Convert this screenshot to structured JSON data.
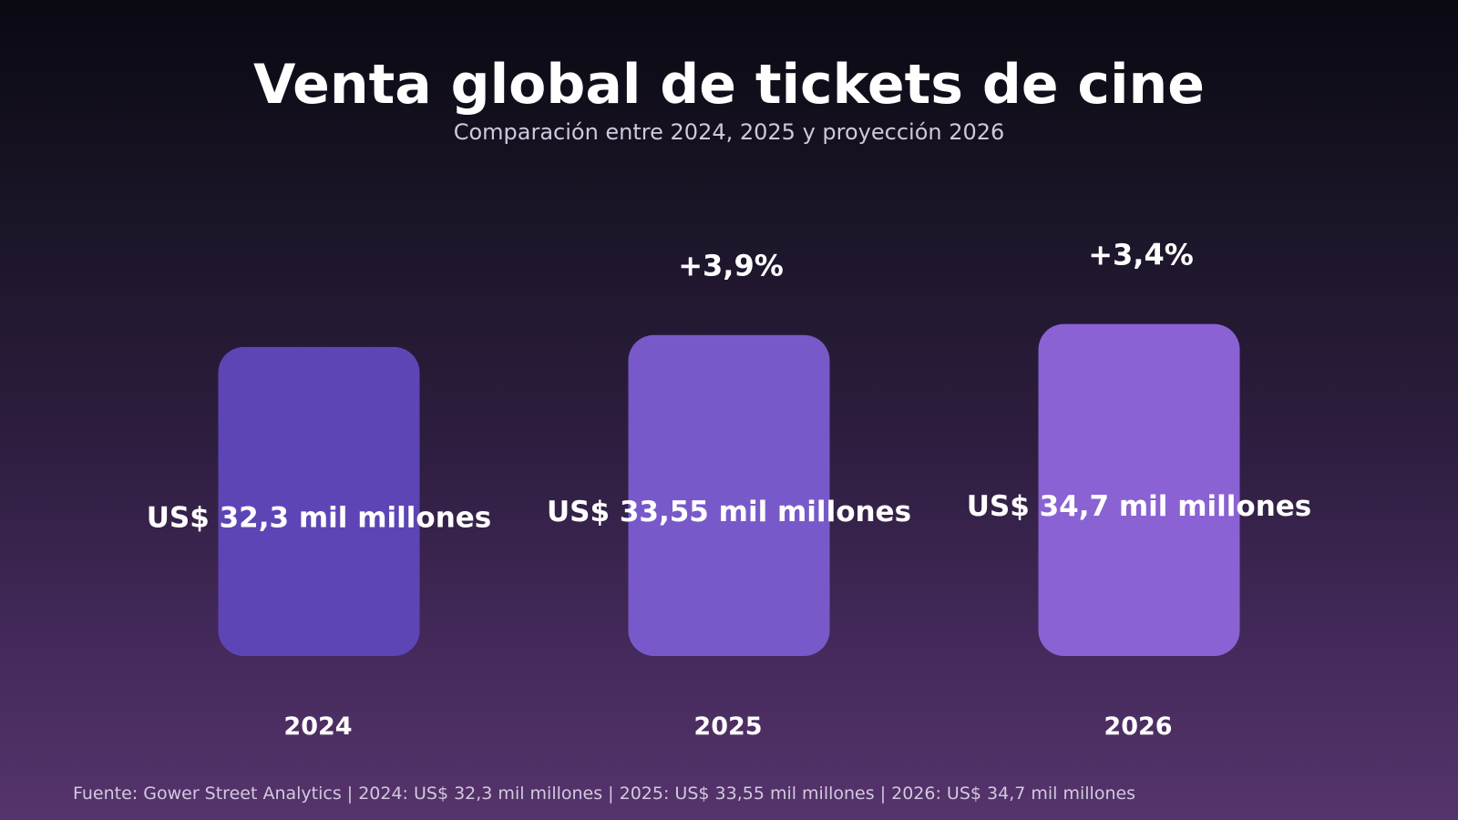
{
  "title": "Venta global de tickets de cine",
  "subtitle": "Comparación entre 2024, 2025 y proyección 2026",
  "footer": "Fuente: Gower Street Analytics | 2024: US$ 32,3 mil millones | 2025: US$ 33,55 mil millones | 2026: US$ 34,7 mil millones",
  "chart_data": {
    "type": "bar",
    "title": "Venta global de tickets de cine",
    "subtitle": "Comparación entre 2024, 2025 y proyección 2026",
    "categories": [
      "2024",
      "2025",
      "2026"
    ],
    "values": [
      32.3,
      33.55,
      34.7
    ],
    "unit": "US$ mil millones",
    "value_labels": [
      "US$ 32,3 mil millones",
      "US$ 33,55 mil millones",
      "US$ 34,7 mil millones"
    ],
    "change_labels": [
      "",
      "+3,9%",
      "+3,4%"
    ],
    "colors": [
      "#5e45b5",
      "#7859c9",
      "#8a62d3"
    ],
    "ylim": [
      0,
      34.7
    ],
    "grid": false,
    "axes_visible": false
  }
}
